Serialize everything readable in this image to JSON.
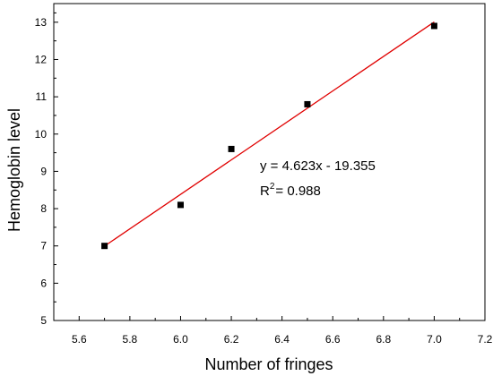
{
  "chart_data": {
    "type": "scatter",
    "xlabel": "Number of fringes",
    "ylabel": "Hemoglobin level",
    "xlim": [
      5.5,
      7.2
    ],
    "ylim": [
      5,
      13.5
    ],
    "x_ticks": [
      5.6,
      5.8,
      6.0,
      6.2,
      6.4,
      6.6,
      6.8,
      7.0,
      7.2
    ],
    "y_ticks": [
      5,
      6,
      7,
      8,
      9,
      10,
      11,
      12,
      13
    ],
    "x_tick_labels": [
      "5.6",
      "5.8",
      "6.0",
      "6.2",
      "6.4",
      "6.6",
      "6.8",
      "7.0",
      "7.2"
    ],
    "y_tick_labels": [
      "5",
      "6",
      "7",
      "8",
      "9",
      "10",
      "11",
      "12",
      "13"
    ],
    "grid": false,
    "series": [
      {
        "marker": "square",
        "color": "#000000",
        "points": [
          {
            "x": 5.7,
            "y": 7.0
          },
          {
            "x": 6.0,
            "y": 8.1
          },
          {
            "x": 6.2,
            "y": 9.6
          },
          {
            "x": 6.5,
            "y": 10.8
          },
          {
            "x": 7.0,
            "y": 12.9
          }
        ]
      }
    ],
    "fit_line": {
      "color": "#e00000",
      "slope": 4.623,
      "intercept": -19.355,
      "x_range": [
        5.7,
        7.0
      ]
    },
    "annotations": {
      "equation": "y = 4.623x - 19.355",
      "r2_prefix": "R",
      "r2_exponent": "2",
      "r2_value": "= 0.988"
    }
  }
}
